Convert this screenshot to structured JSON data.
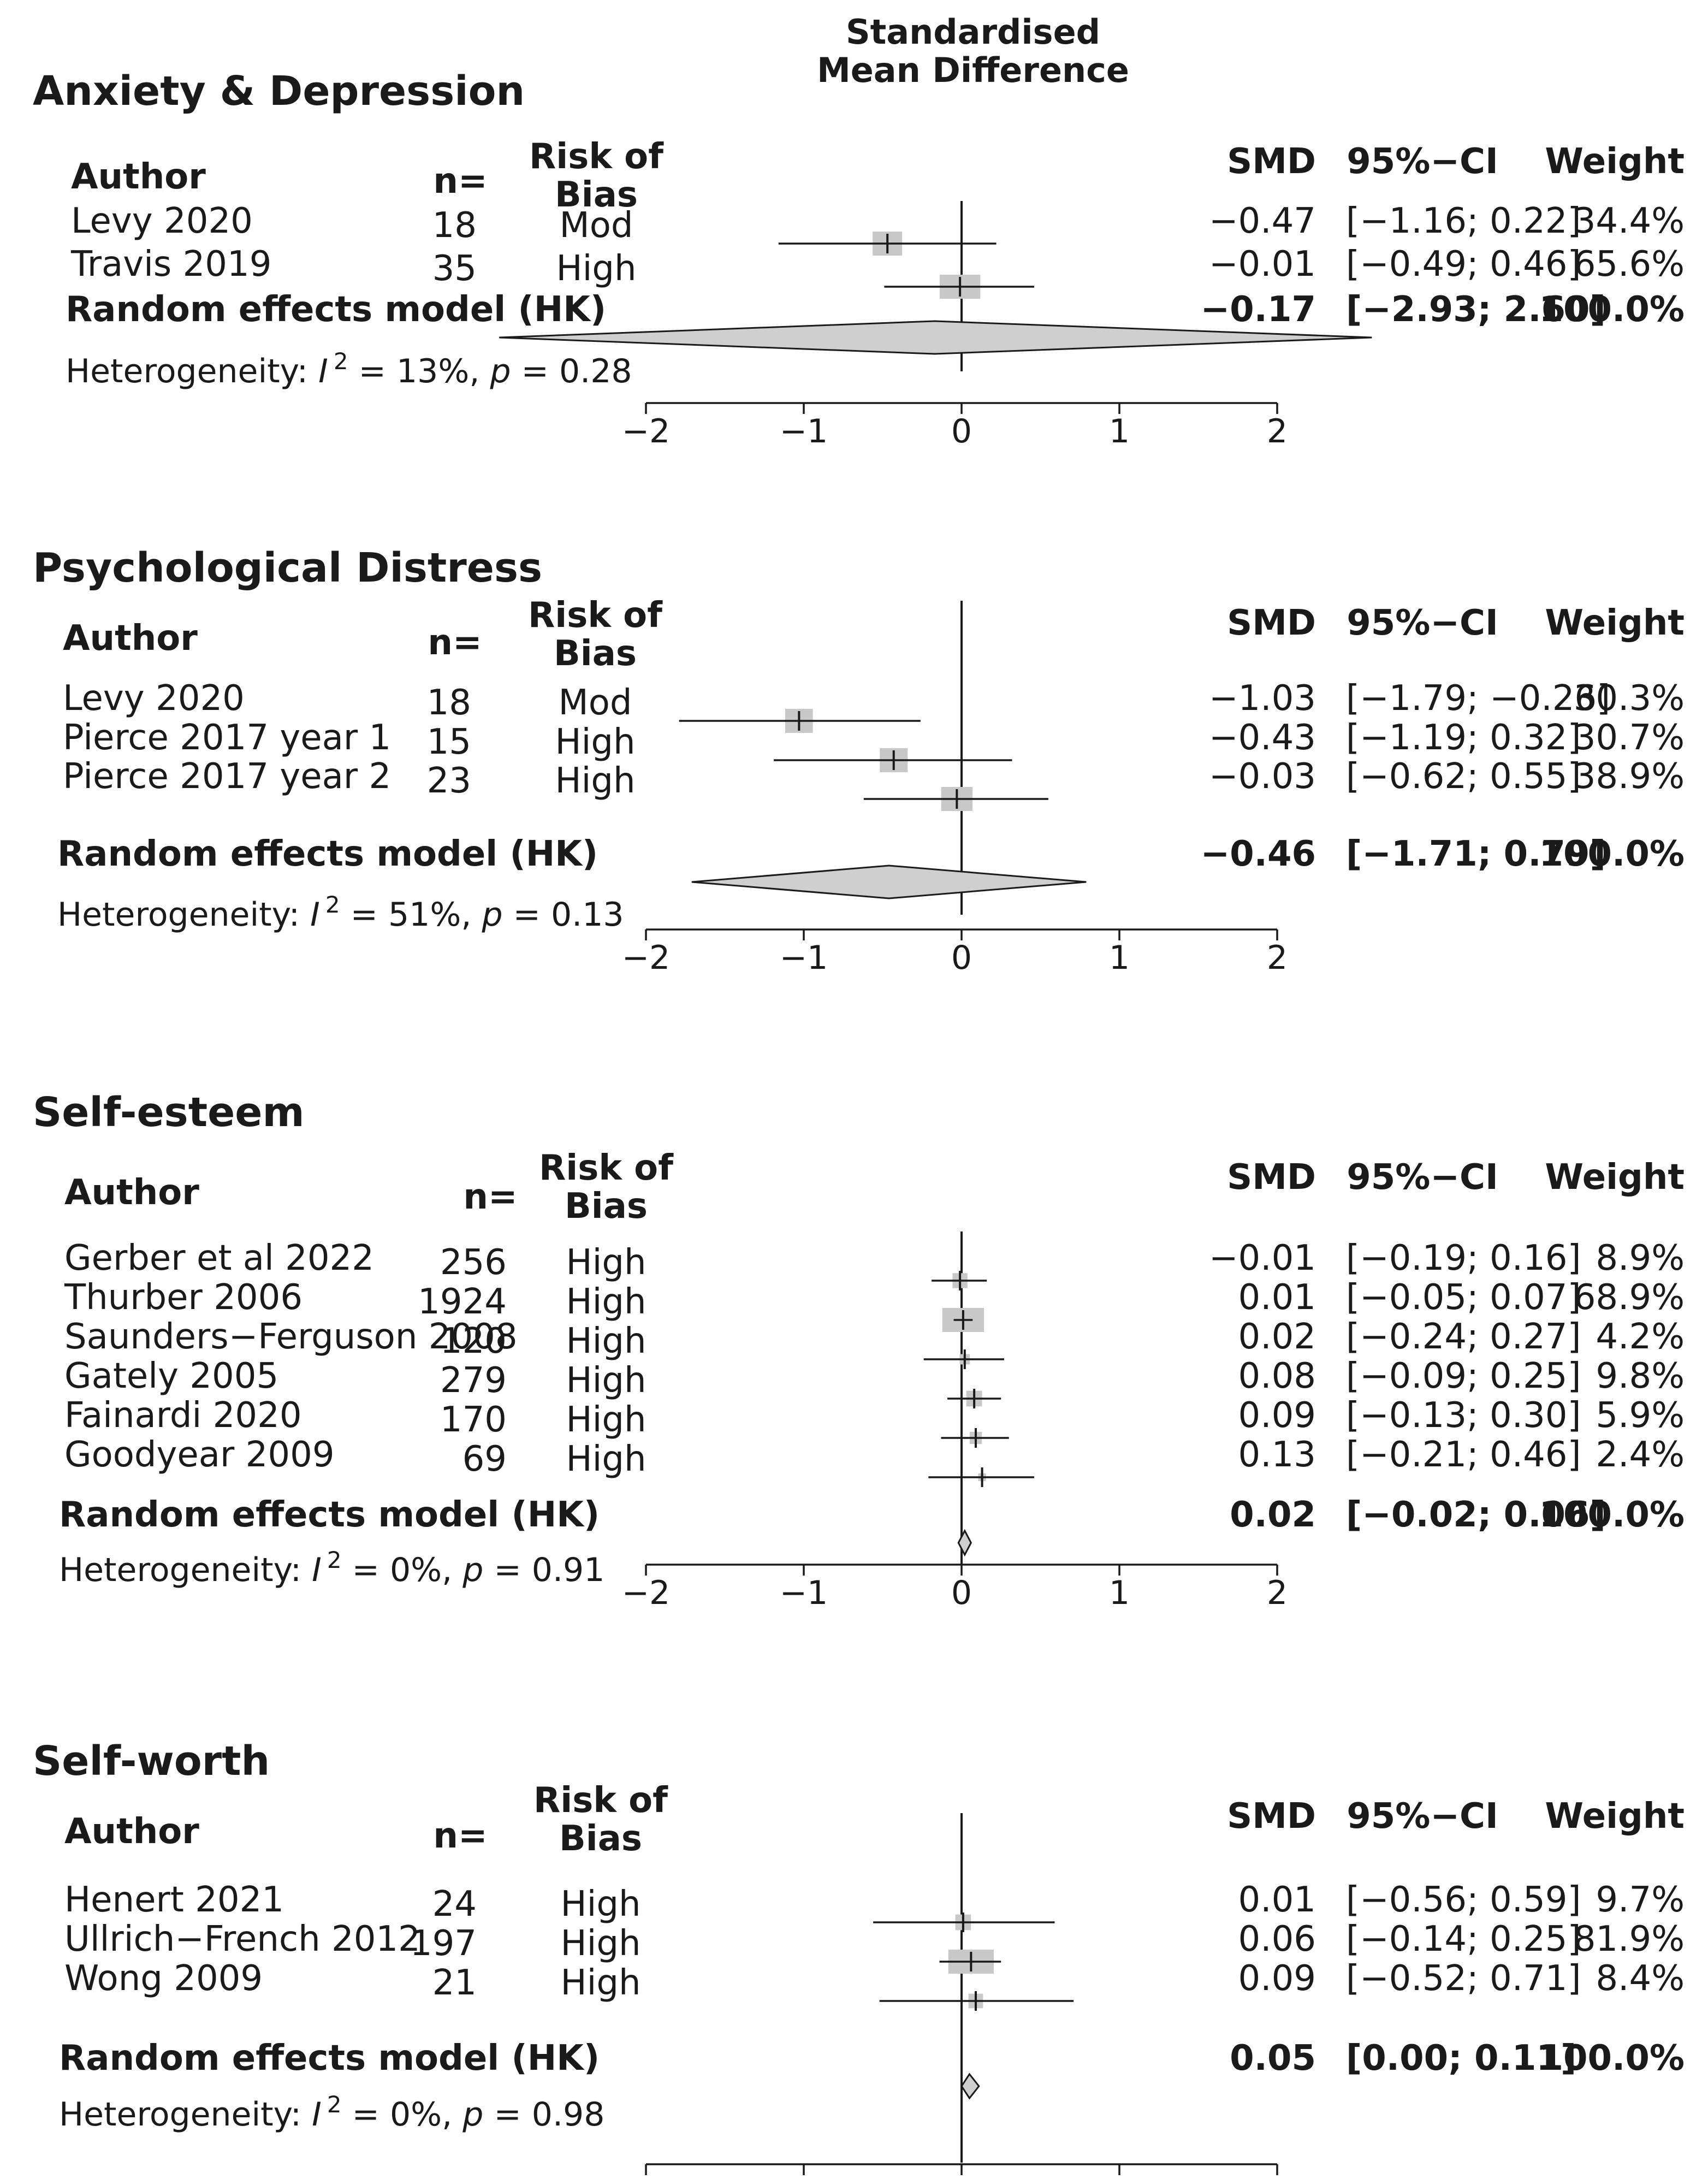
{
  "chart_data": {
    "type": "forest",
    "x_axis_title": [
      "Standardised",
      "Mean Difference"
    ],
    "xlim": [
      -2,
      2
    ],
    "xticks": [
      "−2",
      "−1",
      "0",
      "1",
      "2"
    ],
    "xtick_values": [
      -2,
      -1,
      0,
      1,
      2
    ],
    "panels": [
      {
        "title": "Anxiety & Depression",
        "headers": {
          "author": "Author",
          "n": "n=",
          "bias": [
            "Risk of",
            "Bias"
          ],
          "smd": "SMD",
          "ci": "95%−CI",
          "weight": "Weight"
        },
        "studies": [
          {
            "author": "Levy 2020",
            "n": "18",
            "bias": "Mod",
            "smd": -0.47,
            "lo": -1.16,
            "hi": 0.22,
            "smd_label": "−0.47",
            "ci_label": "[−1.16; 0.22]",
            "weight_label": "34.4%",
            "weight": 34.4
          },
          {
            "author": "Travis 2019",
            "n": "35",
            "bias": "High",
            "smd": -0.01,
            "lo": -0.49,
            "hi": 0.46,
            "smd_label": "−0.01",
            "ci_label": "[−0.49; 0.46]",
            "weight_label": "65.6%",
            "weight": 65.6
          }
        ],
        "pooled": {
          "label": "Random effects model (HK)",
          "smd": -0.17,
          "lo": -2.93,
          "hi": 2.6,
          "smd_label": "−0.17",
          "ci_label": "[−2.93; 2.60]",
          "weight_label": "100.0%"
        },
        "heterogeneity": {
          "prefix": "Heterogeneity: ",
          "I": "I",
          "sup": "2",
          "rest": " = 13%, ",
          "p": "p",
          "p_rest": " = 0.28"
        }
      },
      {
        "title": "Psychological Distress",
        "headers": {
          "author": "Author",
          "n": "n=",
          "bias": [
            "Risk of",
            "Bias"
          ],
          "smd": "SMD",
          "ci": "95%−CI",
          "weight": "Weight"
        },
        "studies": [
          {
            "author": "Levy 2020",
            "n": "18",
            "bias": "Mod",
            "smd": -1.03,
            "lo": -1.79,
            "hi": -0.26,
            "smd_label": "−1.03",
            "ci_label": "[−1.79; −0.26]",
            "weight_label": "30.3%",
            "weight": 30.3
          },
          {
            "author": "Pierce 2017 year 1",
            "n": "15",
            "bias": "High",
            "smd": -0.43,
            "lo": -1.19,
            "hi": 0.32,
            "smd_label": "−0.43",
            "ci_label": "[−1.19; 0.32]",
            "weight_label": "30.7%",
            "weight": 30.7
          },
          {
            "author": "Pierce 2017 year 2",
            "n": "23",
            "bias": "High",
            "smd": -0.03,
            "lo": -0.62,
            "hi": 0.55,
            "smd_label": "−0.03",
            "ci_label": "[−0.62; 0.55]",
            "weight_label": "38.9%",
            "weight": 38.9
          }
        ],
        "pooled": {
          "label": "Random effects model (HK)",
          "smd": -0.46,
          "lo": -1.71,
          "hi": 0.79,
          "smd_label": "−0.46",
          "ci_label": "[−1.71; 0.79]",
          "weight_label": "100.0%"
        },
        "heterogeneity": {
          "prefix": "Heterogeneity: ",
          "I": "I",
          "sup": "2",
          "rest": " = 51%, ",
          "p": "p",
          "p_rest": " = 0.13"
        }
      },
      {
        "title": "Self-esteem",
        "headers": {
          "author": "Author",
          "n": "n=",
          "bias": [
            "Risk of",
            "Bias"
          ],
          "smd": "SMD",
          "ci": "95%−CI",
          "weight": "Weight"
        },
        "studies": [
          {
            "author": "Gerber et al 2022",
            "n": "256",
            "bias": "High",
            "smd": -0.01,
            "lo": -0.19,
            "hi": 0.16,
            "smd_label": "−0.01",
            "ci_label": "[−0.19; 0.16]",
            "weight_label": "8.9%",
            "weight": 8.9
          },
          {
            "author": "Thurber 2006",
            "n": "1924",
            "bias": "High",
            "smd": 0.01,
            "lo": -0.05,
            "hi": 0.07,
            "smd_label": "0.01",
            "ci_label": "[−0.05; 0.07]",
            "weight_label": "68.9%",
            "weight": 68.9
          },
          {
            "author": "Saunders−Ferguson 2008",
            "n": "120",
            "bias": "High",
            "smd": 0.02,
            "lo": -0.24,
            "hi": 0.27,
            "smd_label": "0.02",
            "ci_label": "[−0.24; 0.27]",
            "weight_label": "4.2%",
            "weight": 4.2
          },
          {
            "author": "Gately 2005",
            "n": "279",
            "bias": "High",
            "smd": 0.08,
            "lo": -0.09,
            "hi": 0.25,
            "smd_label": "0.08",
            "ci_label": "[−0.09; 0.25]",
            "weight_label": "9.8%",
            "weight": 9.8
          },
          {
            "author": "Fainardi 2020",
            "n": "170",
            "bias": "High",
            "smd": 0.09,
            "lo": -0.13,
            "hi": 0.3,
            "smd_label": "0.09",
            "ci_label": "[−0.13; 0.30]",
            "weight_label": "5.9%",
            "weight": 5.9
          },
          {
            "author": "Goodyear 2009",
            "n": "69",
            "bias": "High",
            "smd": 0.13,
            "lo": -0.21,
            "hi": 0.46,
            "smd_label": "0.13",
            "ci_label": "[−0.21; 0.46]",
            "weight_label": "2.4%",
            "weight": 2.4
          }
        ],
        "pooled": {
          "label": "Random effects model (HK)",
          "smd": 0.02,
          "lo": -0.02,
          "hi": 0.06,
          "smd_label": "0.02",
          "ci_label": "[−0.02; 0.06]",
          "weight_label": "100.0%"
        },
        "heterogeneity": {
          "prefix": "Heterogeneity: ",
          "I": "I",
          "sup": "2",
          "rest": " = 0%, ",
          "p": "p",
          "p_rest": " = 0.91"
        }
      },
      {
        "title": "Self-worth",
        "headers": {
          "author": "Author",
          "n": "n=",
          "bias": [
            "Risk of",
            "Bias"
          ],
          "smd": "SMD",
          "ci": "95%−CI",
          "weight": "Weight"
        },
        "studies": [
          {
            "author": "Henert 2021",
            "n": "24",
            "bias": "High",
            "smd": 0.01,
            "lo": -0.56,
            "hi": 0.59,
            "smd_label": "0.01",
            "ci_label": "[−0.56; 0.59]",
            "weight_label": "9.7%",
            "weight": 9.7
          },
          {
            "author": "Ullrich−French 2012",
            "n": "197",
            "bias": "High",
            "smd": 0.06,
            "lo": -0.14,
            "hi": 0.25,
            "smd_label": "0.06",
            "ci_label": "[−0.14; 0.25]",
            "weight_label": "81.9%",
            "weight": 81.9
          },
          {
            "author": "Wong 2009",
            "n": "21",
            "bias": "High",
            "smd": 0.09,
            "lo": -0.52,
            "hi": 0.71,
            "smd_label": "0.09",
            "ci_label": "[−0.52; 0.71]",
            "weight_label": "8.4%",
            "weight": 8.4
          }
        ],
        "pooled": {
          "label": "Random effects model (HK)",
          "smd": 0.05,
          "lo": 0.0,
          "hi": 0.11,
          "smd_label": "0.05",
          "ci_label": "[0.00; 0.11]",
          "weight_label": "100.0%"
        },
        "heterogeneity": {
          "prefix": "Heterogeneity: ",
          "I": "I",
          "sup": "2",
          "rest": " = 0%, ",
          "p": "p",
          "p_rest": " = 0.98"
        }
      }
    ]
  },
  "colors": {
    "ink": "#1a1a1a",
    "box": "#c8c8c8",
    "diamond": "#cfcfcf"
  }
}
